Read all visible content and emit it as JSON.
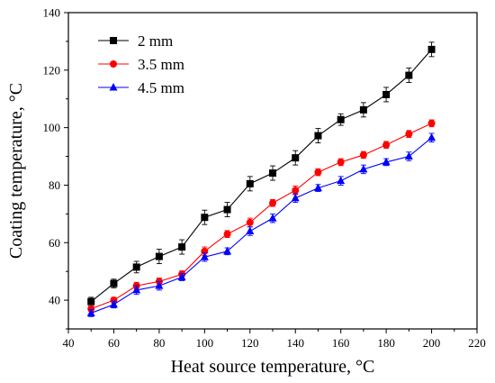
{
  "chart_data": {
    "type": "line",
    "title": "",
    "xlabel": "Heat source temperature, °C",
    "ylabel": "Coating temperature, °C",
    "xlim": [
      40,
      220
    ],
    "ylim": [
      30,
      140
    ],
    "xticks": [
      40,
      60,
      80,
      100,
      120,
      140,
      160,
      180,
      200,
      220
    ],
    "yticks": [
      40,
      60,
      80,
      100,
      120,
      140
    ],
    "grid": false,
    "legend_position": "top-left",
    "x": [
      50,
      60,
      70,
      80,
      90,
      100,
      110,
      120,
      130,
      140,
      150,
      160,
      170,
      180,
      190,
      200
    ],
    "series": [
      {
        "name": "2 mm",
        "color": "#000000",
        "marker": "square",
        "values": [
          39.5,
          45.8,
          51.5,
          55.2,
          58.5,
          68.8,
          71.5,
          80.5,
          84.2,
          89.5,
          97.2,
          102.8,
          106.2,
          111.5,
          118.2,
          127.2
        ],
        "errors": [
          1.5,
          1.5,
          2.0,
          2.5,
          2.5,
          2.5,
          2.5,
          2.5,
          2.5,
          2.5,
          2.5,
          2.0,
          2.5,
          2.5,
          2.5,
          2.5
        ]
      },
      {
        "name": "3.5 mm",
        "color": "#ff0000",
        "marker": "circle",
        "values": [
          37.0,
          40.0,
          45.0,
          46.5,
          49.0,
          57.0,
          63.0,
          67.0,
          73.8,
          78.2,
          84.5,
          88.0,
          90.5,
          94.0,
          97.8,
          101.5
        ],
        "errors": [
          1.0,
          1.0,
          1.2,
          1.2,
          1.2,
          1.5,
          1.2,
          1.5,
          1.2,
          1.5,
          1.2,
          1.2,
          1.2,
          1.2,
          1.2,
          1.2
        ]
      },
      {
        "name": "4.5 mm",
        "color": "#0000ff",
        "marker": "triangle",
        "values": [
          35.5,
          38.5,
          43.5,
          45.0,
          48.0,
          55.0,
          57.0,
          64.0,
          68.5,
          75.5,
          79.0,
          81.5,
          85.5,
          88.0,
          90.0,
          96.5
        ],
        "errors": [
          1.2,
          1.2,
          1.5,
          1.5,
          1.2,
          1.5,
          1.2,
          1.5,
          1.5,
          1.5,
          1.2,
          1.5,
          1.5,
          1.2,
          1.5,
          1.5
        ]
      }
    ]
  }
}
